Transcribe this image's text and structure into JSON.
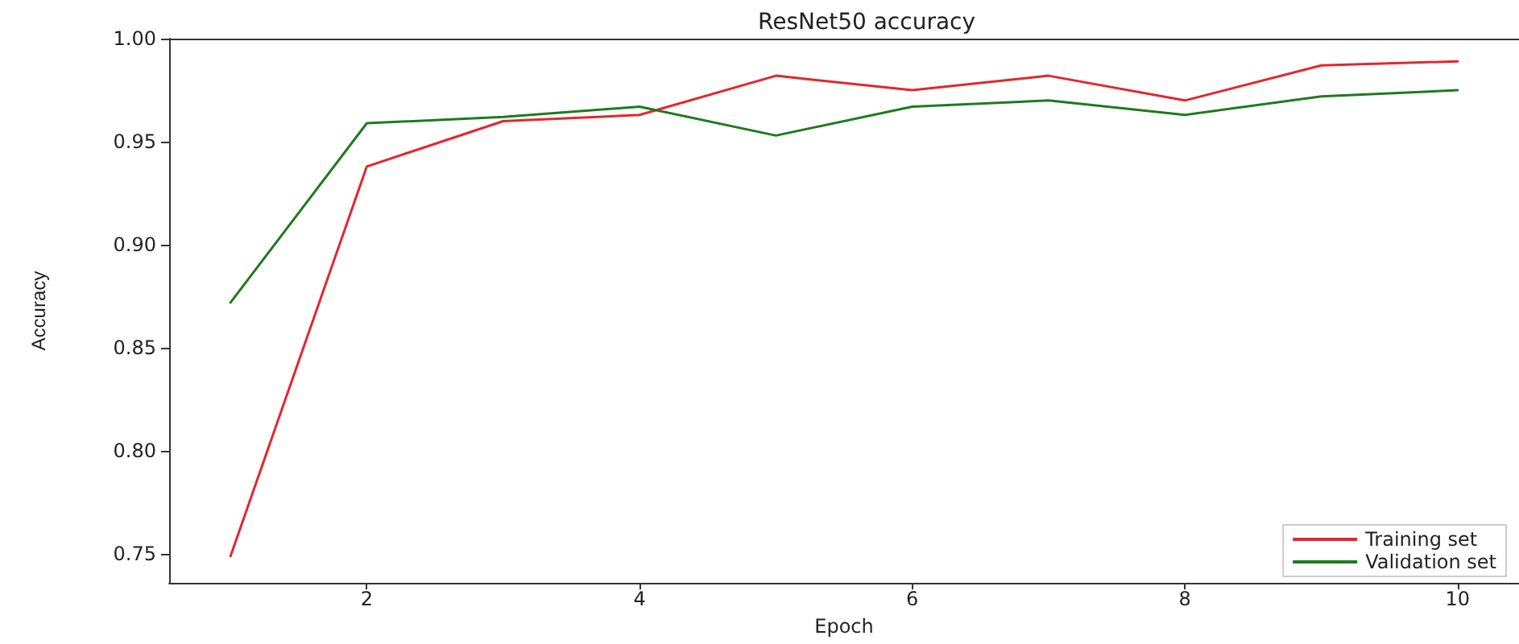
{
  "chart_data": {
    "type": "line",
    "title": "ResNet50 accuracy",
    "xlabel": "Epoch",
    "ylabel": "Accuracy",
    "x": [
      1,
      2,
      3,
      4,
      5,
      6,
      7,
      8,
      9,
      10
    ],
    "series": [
      {
        "name": "Training set",
        "color": "#e3262f",
        "values": [
          0.749,
          0.938,
          0.96,
          0.963,
          0.982,
          0.975,
          0.982,
          0.97,
          0.987,
          0.989
        ]
      },
      {
        "name": "Validation set",
        "color": "#1f7a1f",
        "values": [
          0.872,
          0.959,
          0.962,
          0.967,
          0.953,
          0.967,
          0.97,
          0.963,
          0.972,
          0.975
        ]
      }
    ],
    "xlim": [
      0.55,
      10.45
    ],
    "xticks": [
      2,
      4,
      6,
      8,
      10
    ],
    "ylim": [
      0.736,
      1.0
    ],
    "yticks": [
      {
        "value": 0.75,
        "label": "0.75"
      },
      {
        "value": 0.8,
        "label": "0.80"
      },
      {
        "value": 0.85,
        "label": "0.85"
      },
      {
        "value": 0.9,
        "label": "0.90"
      },
      {
        "value": 0.95,
        "label": "0.95"
      },
      {
        "value": 1.0,
        "label": "1.00"
      }
    ],
    "grid": false,
    "legend": "bottom right",
    "marker": "none",
    "line_style": "solid"
  }
}
